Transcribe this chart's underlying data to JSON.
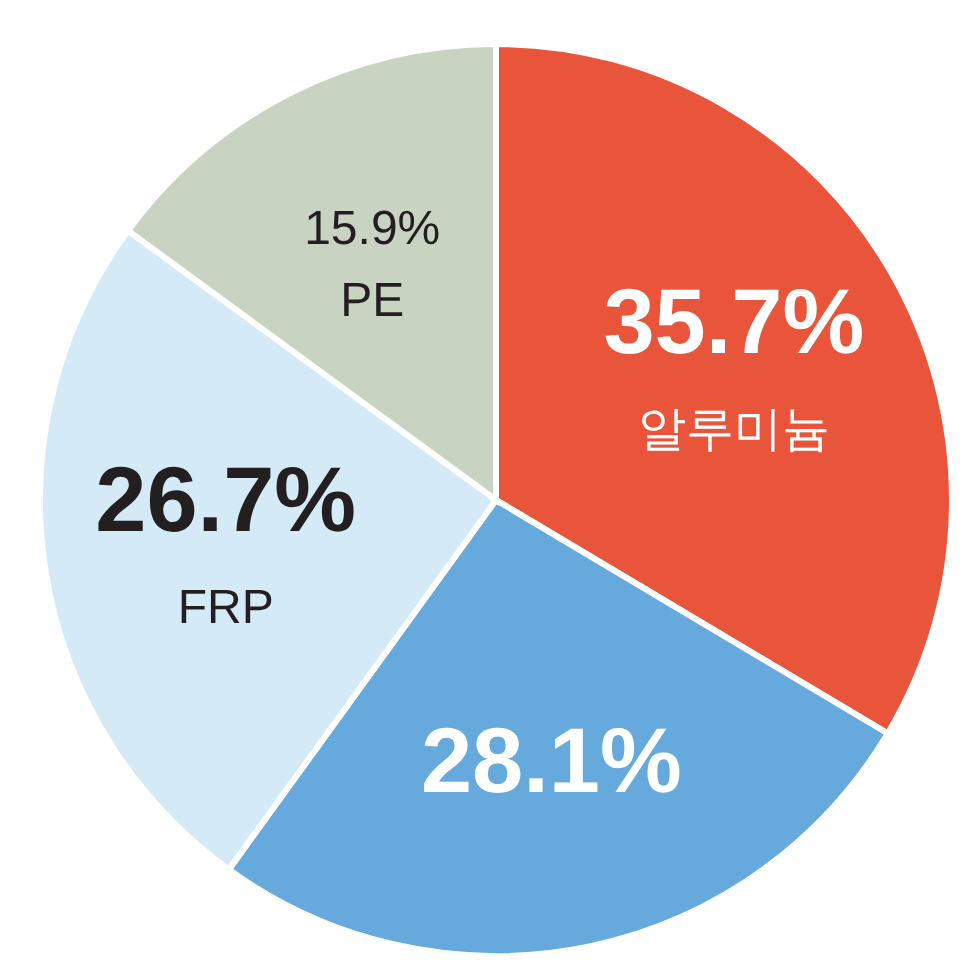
{
  "chart_data": {
    "type": "pie",
    "categories": [
      "알루미늄",
      null,
      "FRP",
      "PE"
    ],
    "values": [
      35.7,
      28.1,
      26.7,
      15.9
    ],
    "colors": [
      "#e8553a",
      "#66a9dc",
      "#d5eaf7",
      "#c8d3c2"
    ],
    "value_labels": [
      "35.7%",
      "28.1%",
      "26.7%",
      "15.9%"
    ]
  }
}
